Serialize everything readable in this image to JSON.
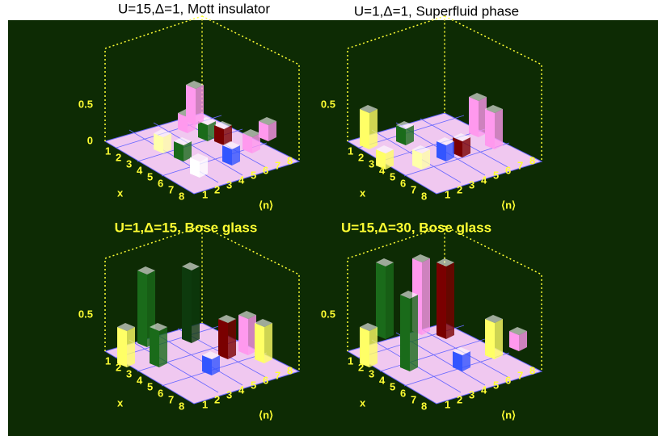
{
  "panels": [
    {
      "title": "U=15,Δ=1, Mott insulator",
      "z_ticks": [
        "0.5",
        "0"
      ],
      "x_label": "x",
      "y_label": "⟨n⟩",
      "index_ticks": [
        "1",
        "2",
        "3",
        "4",
        "5",
        "6",
        "7",
        "8"
      ]
    },
    {
      "title": "U=1,Δ=1, Superfluid phase",
      "z_ticks": [
        "0.5"
      ],
      "x_label": "x",
      "y_label": "⟨n⟩",
      "index_ticks": [
        "1",
        "2",
        "3",
        "4",
        "5",
        "6",
        "7",
        "8"
      ]
    },
    {
      "title": "U=1,Δ=15, Bose glass",
      "z_ticks": [
        "0.5"
      ],
      "x_label": "x",
      "y_label": "⟨n⟩",
      "index_ticks": [
        "1",
        "2",
        "3",
        "4",
        "5",
        "6",
        "7",
        "8"
      ]
    },
    {
      "title": "U=15,Δ=30, Bose glass",
      "z_ticks": [
        "0.5"
      ],
      "x_label": "x",
      "y_label": "⟨n⟩",
      "index_ticks": [
        "1",
        "2",
        "3",
        "4",
        "5",
        "6",
        "7",
        "8"
      ]
    }
  ]
}
